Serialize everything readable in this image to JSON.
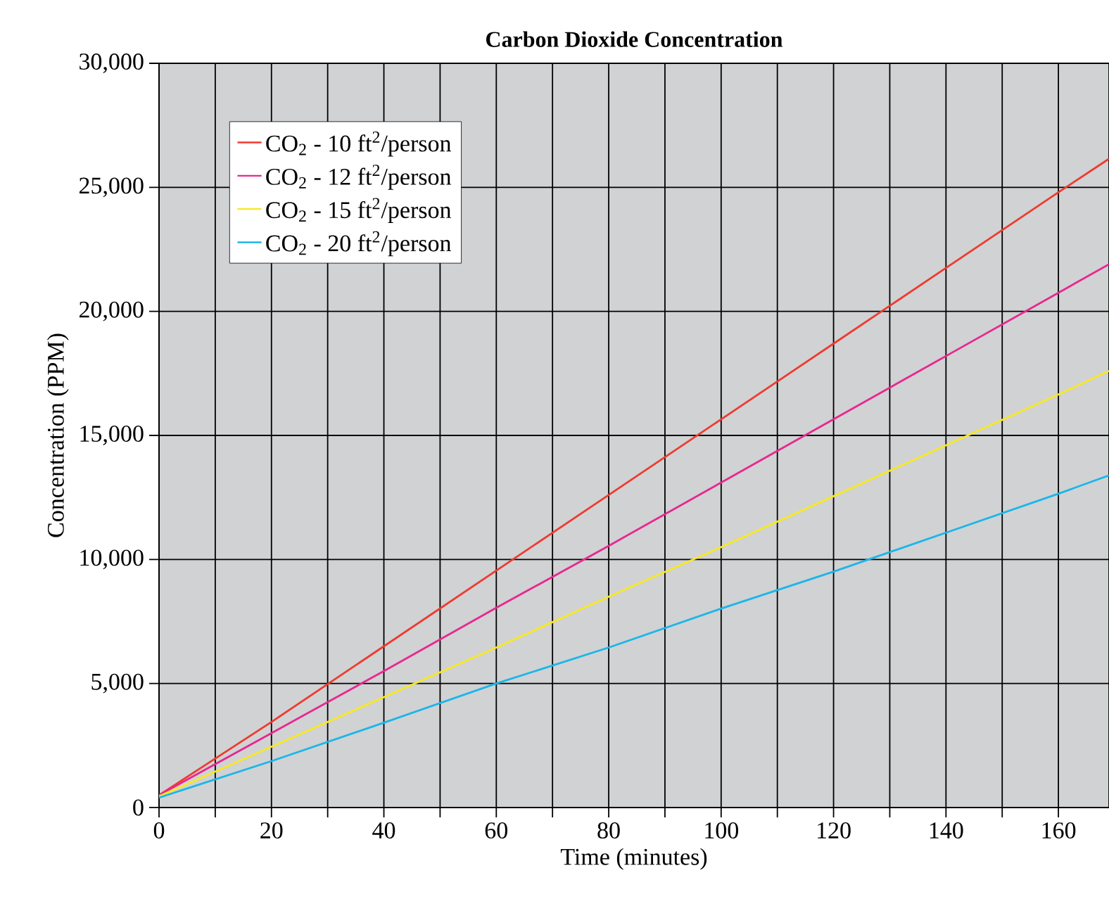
{
  "chart_data": {
    "type": "line",
    "title": "Carbon Dioxide Concentration",
    "xlabel": "Time (minutes)",
    "ylabel": "Concentration (PPM)",
    "x": [
      0,
      20,
      40,
      60,
      80,
      100,
      120,
      140,
      160,
      169
    ],
    "series": [
      {
        "name": "CO$_{2}$ - 10  ft$^{2}$/person",
        "color": "#ee3b2f",
        "values": [
          500,
          3450,
          6500,
          9550,
          12600,
          15650,
          18700,
          21750,
          24800,
          26150
        ]
      },
      {
        "name": "CO$_{2}$ - 12  ft$^{2}$/person",
        "color": "#e8288f",
        "values": [
          500,
          3000,
          5500,
          8050,
          10550,
          13100,
          15650,
          18200,
          20750,
          21900
        ]
      },
      {
        "name": "CO$_{2}$ - 15  ft$^{2}$/person",
        "color": "#f7e824",
        "values": [
          450,
          2450,
          4450,
          6450,
          8500,
          10500,
          12550,
          14600,
          16650,
          17600
        ]
      },
      {
        "name": "CO$_{2}$ - 20  ft$^{2}$/person",
        "color": "#1ab6ea",
        "values": [
          400,
          1870,
          3420,
          5000,
          6450,
          8020,
          9510,
          11080,
          12650,
          13390
        ]
      }
    ],
    "xlim": [
      0,
      169
    ],
    "ylim": [
      0,
      30000
    ],
    "xticks": [
      0,
      {
        "value": 10,
        "label": null
      },
      20,
      {
        "value": 30,
        "label": null
      },
      40,
      {
        "value": 50,
        "label": null
      },
      60,
      {
        "value": 70,
        "label": null
      },
      80,
      {
        "value": 90,
        "label": null
      },
      100,
      {
        "value": 110,
        "label": null
      },
      120,
      {
        "value": 130,
        "label": null
      },
      140,
      {
        "value": 150,
        "label": null
      },
      160
    ],
    "yticks": [
      0,
      {
        "value": 5000,
        "label": "5,000"
      },
      {
        "value": 10000,
        "label": "10,000"
      },
      {
        "value": 15000,
        "label": "15,000"
      },
      {
        "value": 20000,
        "label": "20,000"
      },
      {
        "value": 25000,
        "label": "25,000"
      },
      {
        "value": 30000,
        "label": "30,000"
      }
    ],
    "grid": true,
    "legend": "top left",
    "marker": "none",
    "line_style": "solid"
  }
}
